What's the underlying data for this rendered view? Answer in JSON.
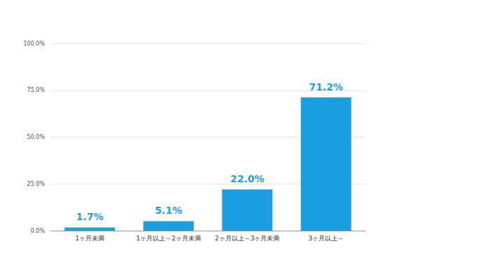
{
  "chart_data": {
    "type": "bar",
    "categories": [
      "1ヶ月未満",
      "1ヶ月以上～2ヶ月未満",
      "2ヶ月以上～3ヶ月未満",
      "3ヶ月以上～"
    ],
    "values": [
      1.7,
      5.1,
      22.0,
      71.2
    ],
    "value_labels": [
      "1.7%",
      "5.1%",
      "22.0%",
      "71.2%"
    ],
    "color": "#1a9fe3",
    "ylim": [
      0,
      100
    ],
    "yticks": [
      {
        "value": 0,
        "label": "0.0%"
      },
      {
        "value": 25,
        "label": "25.0%"
      },
      {
        "value": 50,
        "label": "50.0%"
      },
      {
        "value": 75,
        "label": "75.0%"
      },
      {
        "value": 100,
        "label": "100.0%"
      }
    ],
    "grid": true,
    "data_labels": true
  }
}
